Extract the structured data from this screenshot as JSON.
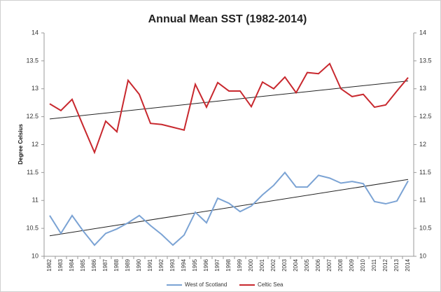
{
  "chart_data": {
    "type": "line",
    "title": "Annual Mean SST (1982-2014)",
    "y_label": "Degree Celsius",
    "categories": [
      "1982",
      "1983",
      "1984",
      "1985",
      "1986",
      "1987",
      "1988",
      "1989",
      "1990",
      "1991",
      "1992",
      "1993",
      "1994",
      "1995",
      "1996",
      "1997",
      "1998",
      "1999",
      "2000",
      "2001",
      "2002",
      "2003",
      "2004",
      "2005",
      "2006",
      "2007",
      "2008",
      "2009",
      "2010",
      "2011",
      "2012",
      "2013",
      "2014"
    ],
    "series": [
      {
        "name": "West of Scotland",
        "color": "#7ba3d4",
        "values": [
          10.73,
          10.41,
          10.73,
          10.45,
          10.2,
          10.41,
          10.49,
          10.6,
          10.73,
          10.55,
          10.39,
          10.2,
          10.38,
          10.79,
          10.6,
          11.04,
          10.95,
          10.8,
          10.9,
          11.1,
          11.27,
          11.5,
          11.24,
          11.24,
          11.45,
          11.4,
          11.31,
          11.34,
          11.3,
          10.98,
          10.94,
          10.99,
          11.35
        ]
      },
      {
        "name": "Celtic Sea",
        "color": "#c8282e",
        "values": [
          12.73,
          12.61,
          12.81,
          12.33,
          11.86,
          12.42,
          12.23,
          13.15,
          12.9,
          12.38,
          12.36,
          12.31,
          12.26,
          13.08,
          12.67,
          13.11,
          12.96,
          12.96,
          12.68,
          13.12,
          13.0,
          13.21,
          12.93,
          13.29,
          13.27,
          13.45,
          13.0,
          12.86,
          12.9,
          12.67,
          12.71,
          12.96,
          13.2
        ]
      }
    ],
    "trendline": true,
    "legend": "bottom",
    "ylim": [
      10,
      14
    ],
    "yticks": [
      10,
      10.5,
      11,
      11.5,
      12,
      12.5,
      13,
      13.5,
      14
    ],
    "y2lim": [
      10,
      14
    ],
    "y2ticks": [
      10,
      10.5,
      11,
      11.5,
      12,
      12.5,
      13,
      13.5,
      14
    ]
  }
}
